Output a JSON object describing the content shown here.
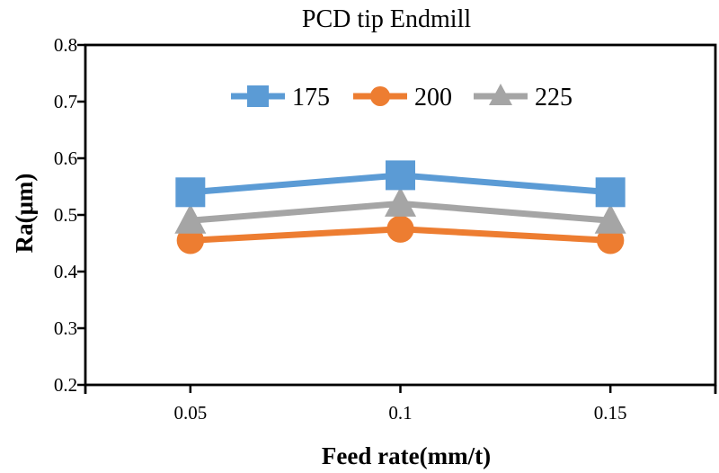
{
  "chart_data": {
    "type": "line",
    "title": "PCD tip Endmill",
    "xlabel": "Feed rate(mm/t)",
    "ylabel": "Ra(μm)",
    "categories": [
      "0.05",
      "0.1",
      "0.15"
    ],
    "series": [
      {
        "name": "175",
        "color": "#5B9BD5",
        "marker": "square",
        "values": [
          0.54,
          0.57,
          0.54
        ]
      },
      {
        "name": "200",
        "color": "#ED7D31",
        "marker": "circle",
        "values": [
          0.455,
          0.475,
          0.455
        ]
      },
      {
        "name": "225",
        "color": "#A5A5A5",
        "marker": "triangle",
        "values": [
          0.49,
          0.52,
          0.49
        ]
      }
    ],
    "ylim": [
      0.2,
      0.8
    ],
    "ytick_step": 0.1,
    "grid": false,
    "legend_position": "top-center-inside",
    "axis_color": "#000000",
    "background": "#ffffff"
  }
}
